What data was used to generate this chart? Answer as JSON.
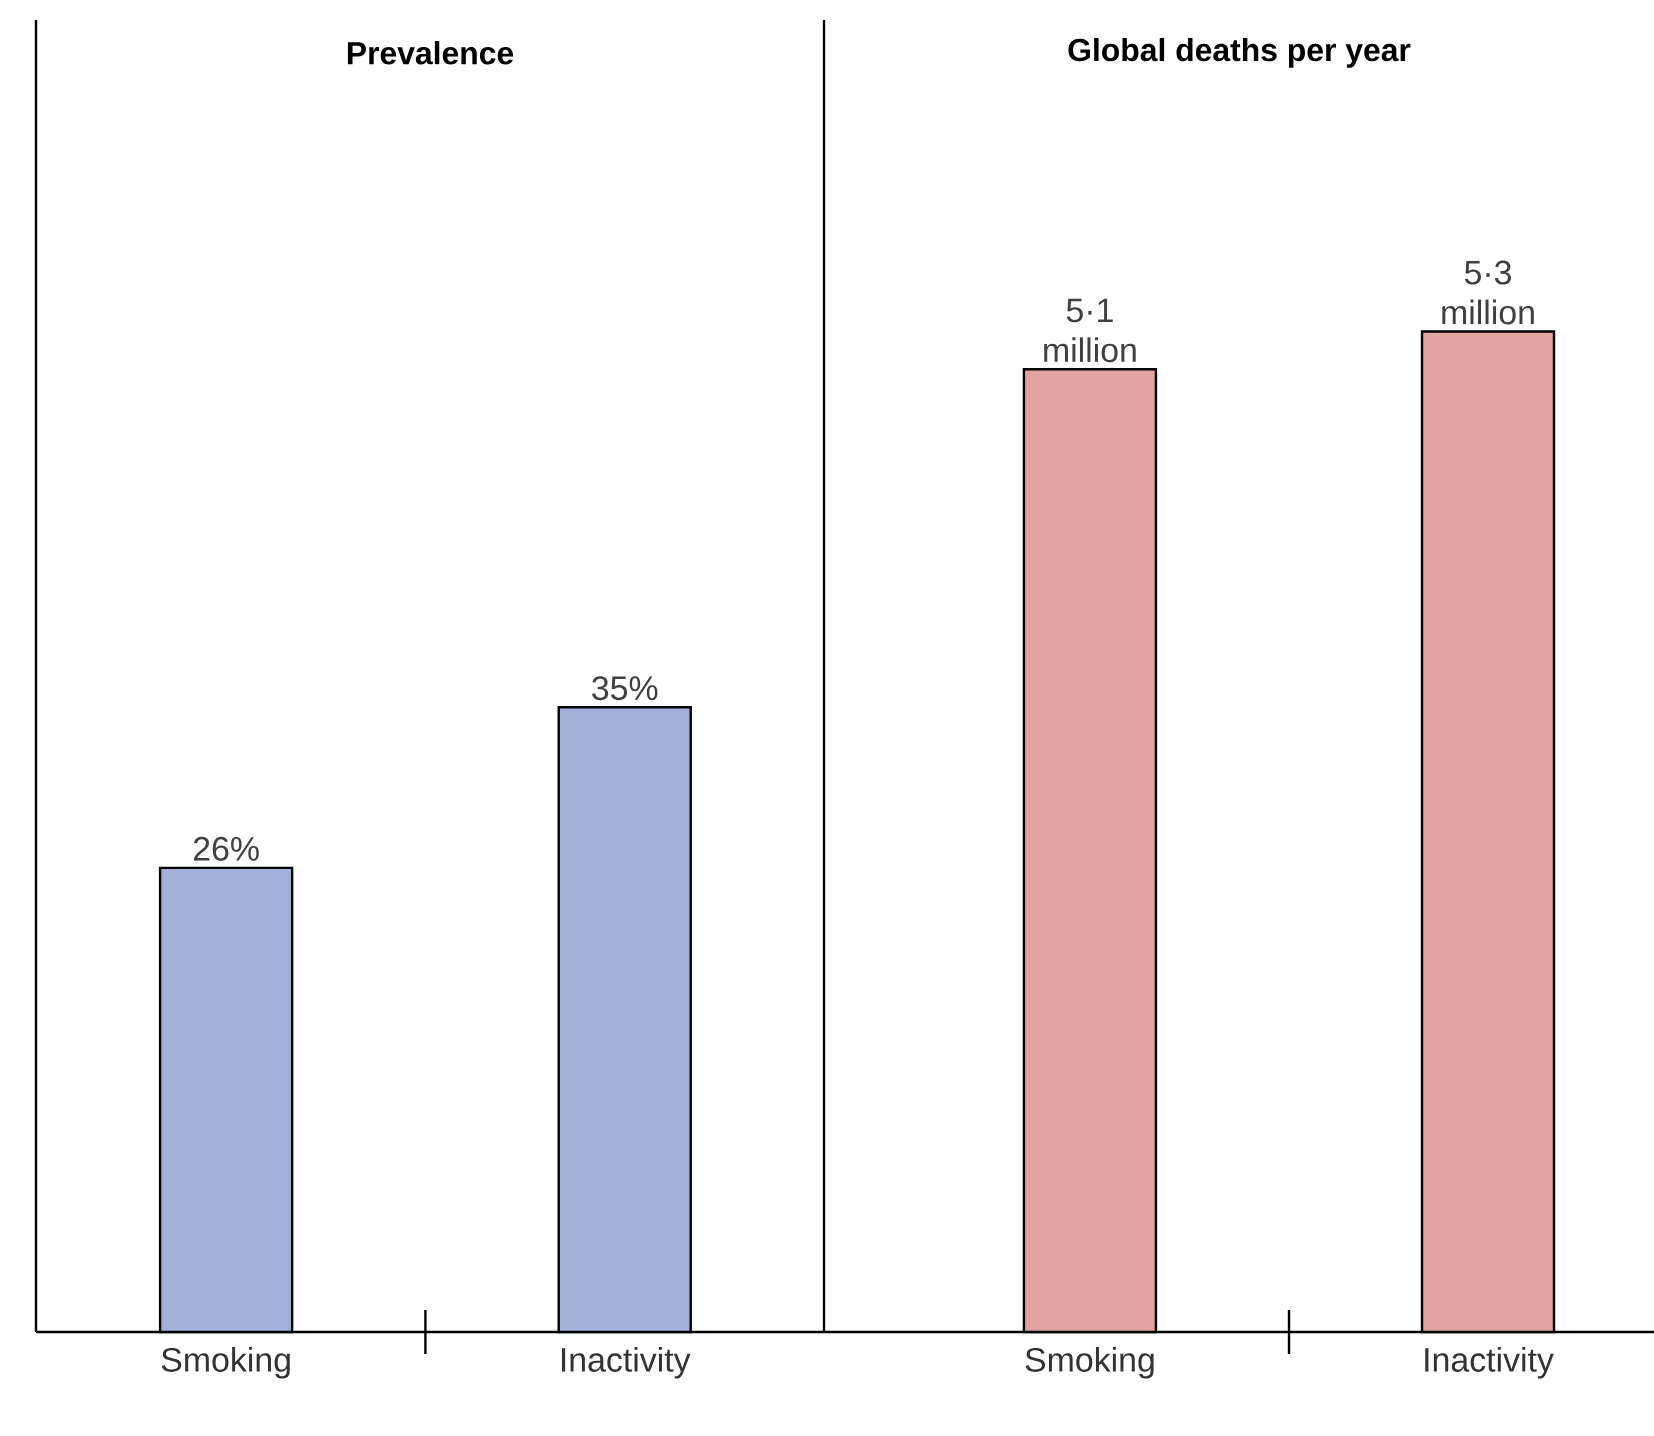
{
  "chart_data": [
    {
      "type": "bar",
      "title": "Prevalence",
      "categories": [
        "Smoking",
        "Inactivity"
      ],
      "values": [
        26,
        35
      ],
      "value_labels": [
        "26%",
        "35%"
      ],
      "color": "#a1b0d8",
      "ylim": [
        0,
        73.5
      ]
    },
    {
      "type": "bar",
      "title": "Global deaths per year",
      "categories": [
        "Smoking",
        "Inactivity"
      ],
      "values": [
        5.1,
        5.3
      ],
      "value_labels": [
        "5·1 million",
        "5·3 million"
      ],
      "color": "#e0a3a1",
      "ylim": [
        0,
        6.95
      ]
    }
  ]
}
